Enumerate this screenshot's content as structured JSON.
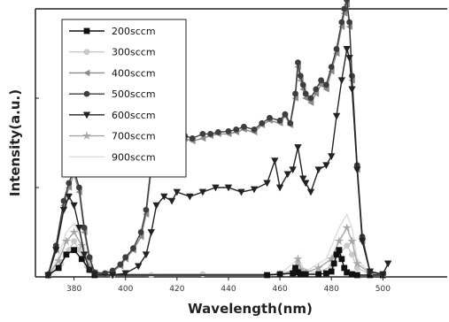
{
  "chart_data": {
    "type": "line",
    "title": "",
    "xlabel": "Wavelength(nm)",
    "ylabel": "Intensity(a.u.)",
    "xlim": [
      365,
      525
    ],
    "ylim": [
      0,
      3
    ],
    "xticks": [
      380,
      400,
      420,
      440,
      460,
      480,
      500
    ],
    "xtick_labels": [
      "380",
      "400",
      "420",
      "440",
      "460",
      "480",
      "500"
    ],
    "yticks": [
      0,
      1,
      2
    ],
    "grid": false,
    "legend_position": "top-left",
    "series": [
      {
        "name": "200sccm",
        "color": "#111111",
        "marker": "square",
        "x": [
          370,
          374,
          377,
          380,
          383,
          386,
          388,
          455,
          460,
          465,
          466,
          467,
          468,
          470,
          475,
          478,
          480,
          481,
          482,
          483,
          484,
          485,
          486,
          488,
          490,
          495,
          500
        ],
        "y": [
          0.02,
          0.1,
          0.25,
          0.3,
          0.2,
          0.08,
          0.02,
          0.02,
          0.03,
          0.04,
          0.1,
          0.05,
          0.03,
          0.03,
          0.03,
          0.04,
          0.06,
          0.15,
          0.25,
          0.3,
          0.2,
          0.1,
          0.05,
          0.03,
          0.02,
          0.02,
          0.02
        ]
      },
      {
        "name": "300sccm",
        "color": "#c9c9c9",
        "marker": "circle",
        "x": [
          370,
          375,
          378,
          380,
          382,
          385,
          388,
          395,
          410,
          430,
          460,
          466,
          467,
          470,
          475,
          480,
          483,
          486,
          488,
          490,
          495,
          500
        ],
        "y": [
          0.02,
          0.15,
          0.3,
          0.4,
          0.3,
          0.12,
          0.03,
          0.02,
          0.02,
          0.03,
          0.03,
          0.05,
          0.15,
          0.06,
          0.05,
          0.12,
          0.25,
          0.35,
          0.25,
          0.1,
          0.03,
          0.02
        ]
      },
      {
        "name": "400sccm",
        "color": "#8a8a8a",
        "marker": "triangle-left",
        "x": [
          370,
          373,
          376,
          378,
          380,
          382,
          384,
          386,
          388,
          392,
          395,
          398,
          400,
          403,
          406,
          408,
          410,
          412,
          414,
          416,
          418,
          420,
          423,
          426,
          430,
          433,
          436,
          440,
          443,
          446,
          450,
          453,
          456,
          460,
          462,
          464,
          466,
          467,
          468,
          469,
          470,
          472,
          474,
          476,
          478,
          480,
          482,
          484,
          485,
          486,
          487,
          488,
          490,
          492,
          495,
          500
        ],
        "y": [
          0.03,
          0.3,
          0.8,
          1.0,
          1.15,
          0.95,
          0.5,
          0.2,
          0.05,
          0.04,
          0.06,
          0.12,
          0.2,
          0.3,
          0.45,
          0.7,
          1.2,
          1.35,
          1.4,
          1.45,
          1.5,
          1.5,
          1.55,
          1.52,
          1.55,
          1.58,
          1.6,
          1.6,
          1.62,
          1.65,
          1.62,
          1.7,
          1.75,
          1.72,
          1.8,
          1.7,
          2.0,
          2.35,
          2.2,
          2.1,
          2.0,
          1.95,
          2.05,
          2.15,
          2.1,
          2.3,
          2.5,
          2.8,
          2.95,
          3.05,
          2.8,
          2.2,
          1.2,
          0.4,
          0.05,
          0.03
        ]
      },
      {
        "name": "500sccm",
        "color": "#3d3d3d",
        "marker": "circle",
        "x": [
          370,
          373,
          376,
          378,
          380,
          382,
          384,
          386,
          388,
          392,
          395,
          398,
          400,
          403,
          406,
          408,
          410,
          412,
          414,
          416,
          418,
          420,
          423,
          426,
          430,
          433,
          436,
          440,
          443,
          446,
          450,
          453,
          456,
          460,
          462,
          464,
          466,
          467,
          468,
          469,
          470,
          472,
          474,
          476,
          478,
          480,
          482,
          484,
          485,
          486,
          487,
          488,
          490,
          492,
          495,
          500
        ],
        "y": [
          0.03,
          0.35,
          0.85,
          1.05,
          1.2,
          1.0,
          0.55,
          0.22,
          0.05,
          0.04,
          0.07,
          0.14,
          0.22,
          0.32,
          0.5,
          0.75,
          1.25,
          1.4,
          1.45,
          1.5,
          1.52,
          1.55,
          1.58,
          1.55,
          1.6,
          1.6,
          1.62,
          1.63,
          1.65,
          1.68,
          1.65,
          1.72,
          1.78,
          1.75,
          1.82,
          1.72,
          2.05,
          2.4,
          2.25,
          2.15,
          2.05,
          2.0,
          2.1,
          2.2,
          2.15,
          2.35,
          2.55,
          2.85,
          3.0,
          3.1,
          2.85,
          2.25,
          1.25,
          0.45,
          0.06,
          0.03
        ]
      },
      {
        "name": "600sccm",
        "color": "#222222",
        "marker": "triangle-down",
        "x": [
          370,
          373,
          376,
          378,
          380,
          382,
          384,
          386,
          388,
          395,
          400,
          405,
          408,
          410,
          412,
          415,
          418,
          420,
          425,
          430,
          435,
          440,
          445,
          450,
          455,
          458,
          460,
          463,
          465,
          467,
          469,
          470,
          472,
          475,
          478,
          480,
          482,
          484,
          486,
          487,
          488,
          490,
          492,
          495,
          500,
          502
        ],
        "y": [
          0.02,
          0.3,
          0.75,
          0.9,
          0.8,
          0.55,
          0.25,
          0.08,
          0.03,
          0.02,
          0.04,
          0.12,
          0.25,
          0.5,
          0.8,
          0.9,
          0.85,
          0.95,
          0.9,
          0.95,
          1.0,
          1.0,
          0.95,
          0.98,
          1.05,
          1.3,
          1.0,
          1.15,
          1.2,
          1.45,
          1.1,
          1.05,
          0.95,
          1.2,
          1.25,
          1.35,
          1.8,
          2.2,
          2.55,
          2.45,
          2.1,
          1.2,
          0.4,
          0.06,
          0.03,
          0.15
        ]
      },
      {
        "name": "700sccm",
        "color": "#a6a6a6",
        "marker": "star",
        "x": [
          370,
          374,
          377,
          380,
          383,
          386,
          388,
          460,
          466,
          467,
          468,
          470,
          475,
          480,
          483,
          486,
          488,
          490,
          495,
          500
        ],
        "y": [
          0.02,
          0.18,
          0.4,
          0.5,
          0.35,
          0.12,
          0.03,
          0.03,
          0.08,
          0.2,
          0.08,
          0.05,
          0.1,
          0.2,
          0.4,
          0.55,
          0.4,
          0.15,
          0.04,
          0.02
        ]
      },
      {
        "name": "900sccm",
        "color": "#dcdcdc",
        "marker": "none",
        "x": [
          370,
          374,
          377,
          380,
          383,
          386,
          388,
          460,
          467,
          470,
          478,
          483,
          486,
          488,
          490,
          495,
          500
        ],
        "y": [
          0.02,
          0.22,
          0.5,
          0.6,
          0.42,
          0.15,
          0.03,
          0.03,
          0.2,
          0.06,
          0.2,
          0.55,
          0.7,
          0.55,
          0.2,
          0.04,
          0.02
        ]
      }
    ]
  }
}
